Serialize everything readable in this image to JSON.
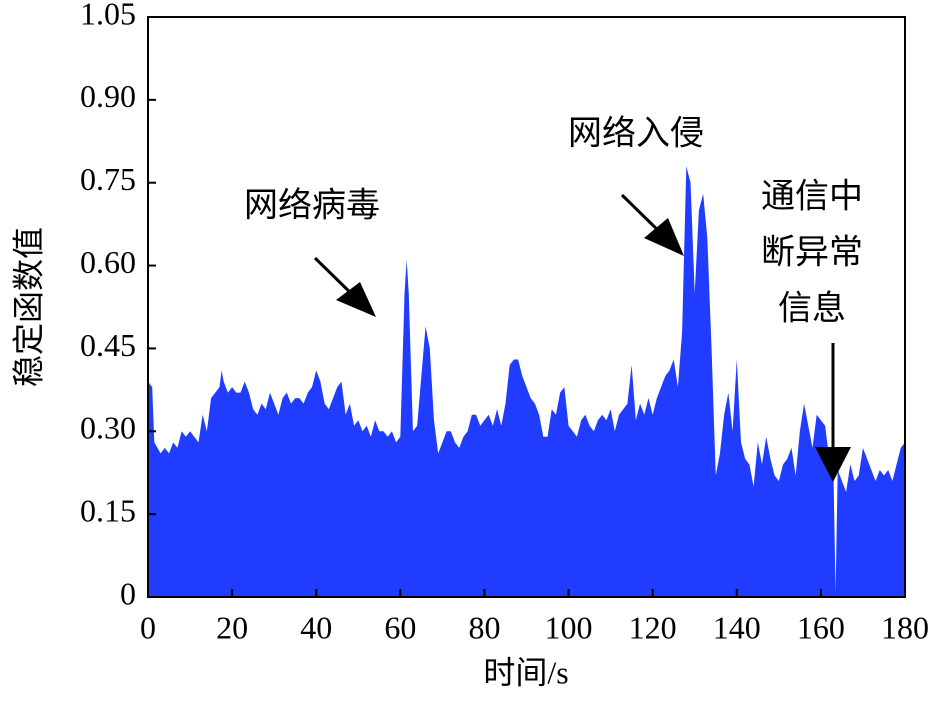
{
  "chart_data": {
    "type": "area",
    "color": "#1f3cff",
    "x_label": "时间/s",
    "y_label": "稳定函数值",
    "xlim": [
      0,
      180
    ],
    "xticks": [
      0,
      20,
      40,
      60,
      80,
      100,
      120,
      140,
      160,
      180
    ],
    "ylim": [
      0,
      1.05
    ],
    "yticks": [
      0,
      0.15,
      {
        "value": 0.3,
        "label": "0.30"
      },
      0.45,
      {
        "value": 0.6,
        "label": "0.60"
      },
      0.75,
      {
        "value": 0.9,
        "label": "0.90"
      },
      1.05
    ],
    "annotations": [
      [
        "网络病毒"
      ],
      [
        "网络入侵"
      ],
      [
        "通信中",
        "断异常",
        "信息"
      ]
    ],
    "x": [
      0,
      1,
      1.5,
      3,
      4,
      5,
      6,
      7,
      8,
      9,
      10,
      11,
      12,
      13,
      14,
      15,
      16,
      17,
      17.5,
      18,
      19,
      20,
      21,
      22,
      23,
      24,
      25,
      26,
      27,
      28,
      29,
      30,
      31,
      32,
      33,
      34,
      35,
      36,
      37,
      38,
      39,
      40,
      41,
      42,
      43,
      44,
      45,
      46,
      47,
      48,
      49,
      50,
      51,
      52,
      53,
      54,
      55,
      56,
      57,
      58,
      59,
      60,
      61,
      61.5,
      62,
      63,
      64,
      65,
      66,
      67,
      68,
      69,
      70,
      71,
      72,
      73,
      74,
      75,
      76,
      77,
      78,
      79,
      80,
      81,
      82,
      83,
      84,
      85,
      86,
      87,
      88,
      89,
      90,
      91,
      92,
      93,
      94,
      95,
      96,
      97,
      98,
      99,
      100,
      101,
      102,
      103,
      104,
      105,
      106,
      107,
      108,
      109,
      110,
      111,
      112,
      113,
      114,
      115,
      116,
      117,
      118,
      119,
      120,
      121,
      122,
      123,
      124,
      125,
      126,
      127,
      128,
      129,
      130,
      131,
      132,
      133,
      134,
      135,
      136,
      137,
      138,
      139,
      140,
      141,
      142,
      143,
      144,
      145,
      146,
      147,
      148,
      149,
      150,
      151,
      152,
      153,
      154,
      155,
      156,
      157,
      158,
      159,
      160,
      161,
      162,
      163,
      163.5,
      164,
      165,
      166,
      167,
      168,
      169,
      170,
      171,
      172,
      173,
      174,
      175,
      176,
      177,
      178,
      179,
      180
    ],
    "values": [
      0.39,
      0.38,
      0.28,
      0.26,
      0.27,
      0.26,
      0.28,
      0.27,
      0.3,
      0.29,
      0.3,
      0.29,
      0.28,
      0.33,
      0.3,
      0.36,
      0.37,
      0.38,
      0.41,
      0.39,
      0.37,
      0.38,
      0.37,
      0.37,
      0.39,
      0.37,
      0.34,
      0.33,
      0.35,
      0.34,
      0.37,
      0.35,
      0.33,
      0.36,
      0.37,
      0.35,
      0.36,
      0.36,
      0.35,
      0.37,
      0.38,
      0.41,
      0.39,
      0.35,
      0.34,
      0.36,
      0.38,
      0.39,
      0.33,
      0.35,
      0.31,
      0.32,
      0.3,
      0.31,
      0.29,
      0.32,
      0.3,
      0.3,
      0.29,
      0.3,
      0.28,
      0.29,
      0.55,
      0.61,
      0.55,
      0.3,
      0.31,
      0.4,
      0.49,
      0.45,
      0.32,
      0.26,
      0.28,
      0.3,
      0.3,
      0.28,
      0.27,
      0.29,
      0.3,
      0.33,
      0.33,
      0.31,
      0.32,
      0.33,
      0.31,
      0.34,
      0.31,
      0.35,
      0.42,
      0.43,
      0.43,
      0.4,
      0.38,
      0.36,
      0.35,
      0.33,
      0.29,
      0.29,
      0.34,
      0.33,
      0.37,
      0.38,
      0.31,
      0.3,
      0.29,
      0.32,
      0.33,
      0.31,
      0.3,
      0.32,
      0.33,
      0.32,
      0.34,
      0.3,
      0.33,
      0.34,
      0.35,
      0.42,
      0.32,
      0.35,
      0.33,
      0.36,
      0.33,
      0.36,
      0.38,
      0.4,
      0.41,
      0.43,
      0.38,
      0.48,
      0.78,
      0.75,
      0.55,
      0.7,
      0.73,
      0.65,
      0.45,
      0.22,
      0.26,
      0.33,
      0.37,
      0.3,
      0.43,
      0.28,
      0.25,
      0.24,
      0.2,
      0.28,
      0.24,
      0.29,
      0.25,
      0.22,
      0.21,
      0.24,
      0.25,
      0.27,
      0.22,
      0.3,
      0.35,
      0.31,
      0.27,
      0.33,
      0.32,
      0.31,
      0.25,
      0.22,
      0.01,
      0.23,
      0.21,
      0.19,
      0.24,
      0.21,
      0.22,
      0.27,
      0.25,
      0.23,
      0.21,
      0.23,
      0.22,
      0.23,
      0.21,
      0.24,
      0.27,
      0.28
    ]
  }
}
